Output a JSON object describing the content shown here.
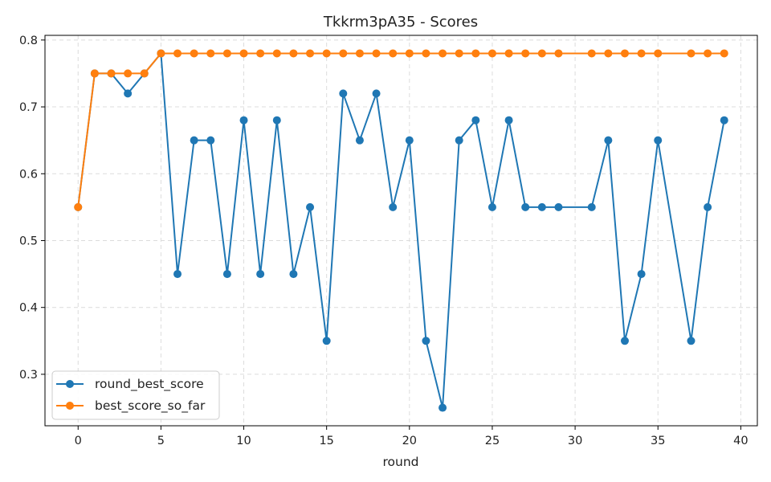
{
  "chart_data": {
    "type": "line",
    "title": "Tkkrm3pA35 - Scores",
    "xlabel": "round",
    "ylabel": "",
    "xlim": [
      -2,
      41
    ],
    "ylim": [
      0.223,
      0.807
    ],
    "xticks": [
      0,
      5,
      10,
      15,
      20,
      25,
      30,
      35,
      40
    ],
    "yticks": [
      0.3,
      0.4,
      0.5,
      0.6,
      0.7,
      0.8
    ],
    "grid": true,
    "legend_position": "lower-left",
    "series": [
      {
        "name": "round_best_score",
        "color": "#1f77b4",
        "points": [
          [
            0,
            0.55
          ],
          [
            1,
            0.75
          ],
          [
            2,
            0.75
          ],
          [
            3,
            0.72
          ],
          [
            4,
            0.75
          ],
          [
            5,
            0.78
          ],
          [
            6,
            0.45
          ],
          [
            7,
            0.65
          ],
          [
            8,
            0.65
          ],
          [
            9,
            0.45
          ],
          [
            10,
            0.68
          ],
          [
            11,
            0.45
          ],
          [
            12,
            0.68
          ],
          [
            13,
            0.45
          ],
          [
            14,
            0.55
          ],
          [
            15,
            0.35
          ],
          [
            16,
            0.72
          ],
          [
            17,
            0.65
          ],
          [
            18,
            0.72
          ],
          [
            19,
            0.55
          ],
          [
            20,
            0.65
          ],
          [
            21,
            0.35
          ],
          [
            22,
            0.25
          ],
          [
            23,
            0.65
          ],
          [
            24,
            0.68
          ],
          [
            25,
            0.55
          ],
          [
            26,
            0.68
          ],
          [
            27,
            0.55
          ],
          [
            28,
            0.55
          ],
          [
            29,
            0.55
          ],
          [
            31,
            0.55
          ],
          [
            32,
            0.65
          ],
          [
            33,
            0.35
          ],
          [
            34,
            0.45
          ],
          [
            35,
            0.65
          ],
          [
            37,
            0.35
          ],
          [
            38,
            0.55
          ],
          [
            39,
            0.68
          ]
        ]
      },
      {
        "name": "best_score_so_far",
        "color": "#ff7f0e",
        "points": [
          [
            0,
            0.55
          ],
          [
            1,
            0.75
          ],
          [
            2,
            0.75
          ],
          [
            3,
            0.75
          ],
          [
            4,
            0.75
          ],
          [
            5,
            0.78
          ],
          [
            6,
            0.78
          ],
          [
            7,
            0.78
          ],
          [
            8,
            0.78
          ],
          [
            9,
            0.78
          ],
          [
            10,
            0.78
          ],
          [
            11,
            0.78
          ],
          [
            12,
            0.78
          ],
          [
            13,
            0.78
          ],
          [
            14,
            0.78
          ],
          [
            15,
            0.78
          ],
          [
            16,
            0.78
          ],
          [
            17,
            0.78
          ],
          [
            18,
            0.78
          ],
          [
            19,
            0.78
          ],
          [
            20,
            0.78
          ],
          [
            21,
            0.78
          ],
          [
            22,
            0.78
          ],
          [
            23,
            0.78
          ],
          [
            24,
            0.78
          ],
          [
            25,
            0.78
          ],
          [
            26,
            0.78
          ],
          [
            27,
            0.78
          ],
          [
            28,
            0.78
          ],
          [
            29,
            0.78
          ],
          [
            31,
            0.78
          ],
          [
            32,
            0.78
          ],
          [
            33,
            0.78
          ],
          [
            34,
            0.78
          ],
          [
            35,
            0.78
          ],
          [
            37,
            0.78
          ],
          [
            38,
            0.78
          ],
          [
            39,
            0.78
          ]
        ]
      }
    ]
  }
}
